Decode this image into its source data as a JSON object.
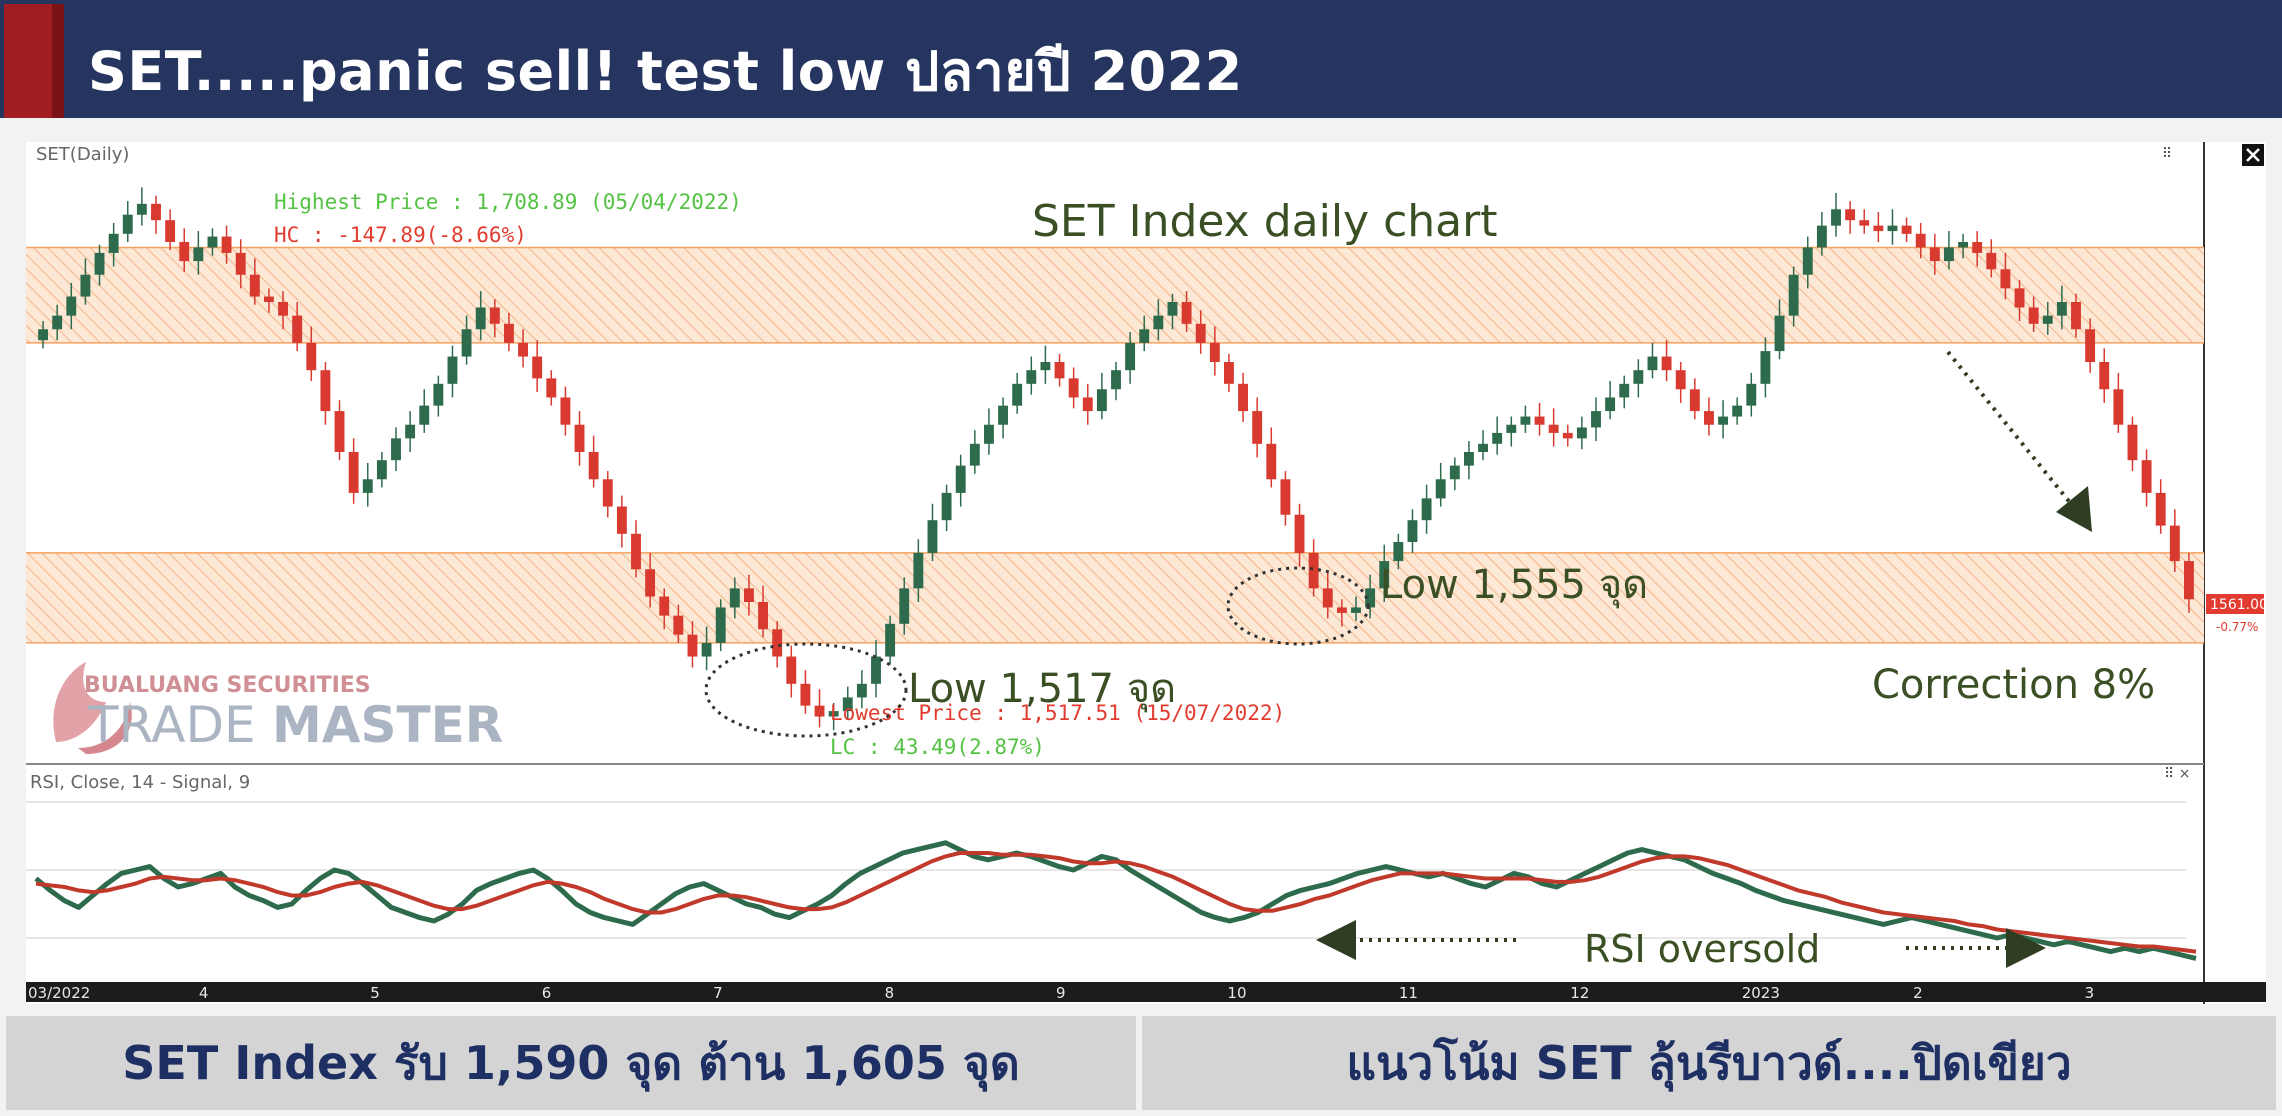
{
  "header": {
    "title": "SET.....panic sell! test low ปลายปี 2022"
  },
  "footer": {
    "left": "SET Index รับ 1,590 จุด ต้าน 1,605 จุด",
    "right": "แนวโน้ม SET ลุ้นรีบาวด์....ปิดเขียว"
  },
  "colors": {
    "header_bg": "#25355f",
    "up": "#2e6b4c",
    "down": "#d93a30",
    "zone": "#f4a261",
    "rsi": "#2e6b4c",
    "signal": "#c0392b"
  },
  "chart_data": [
    {
      "type": "candlestick",
      "panel_label": "SET(Daily)",
      "title": "SET Index daily chart",
      "highest_label": "Highest Price : 1,708.89 (05/04/2022)",
      "hc_label": "HC : -147.89(-8.66%)",
      "lowest_label": "Lowest Price : 1,517.51 (15/07/2022)",
      "lc_label": "LC : 43.49(2.87%)",
      "last_price_tag": "1561.00",
      "last_change_tag": "-0.77%",
      "annotations": {
        "low_a": "Low 1,517 จุด",
        "low_b": "Low 1,555 จุด",
        "correction": "Correction 8%"
      },
      "watermark": {
        "top": "BUALUANG SECURITIES",
        "bottom_a": "TRADE",
        "bottom_b": "MASTER"
      },
      "x_ticks": [
        "03/2022",
        "4",
        "5",
        "6",
        "7",
        "8",
        "9",
        "10",
        "11",
        "12",
        "2023",
        "2",
        "3"
      ],
      "ylim": [
        1505,
        1725
      ],
      "zones": [
        [
          1655,
          1690
        ],
        [
          1545,
          1578
        ]
      ],
      "close": [
        1660,
        1665,
        1672,
        1680,
        1688,
        1695,
        1702,
        1706,
        1700,
        1692,
        1685,
        1690,
        1694,
        1688,
        1680,
        1672,
        1670,
        1665,
        1655,
        1645,
        1630,
        1615,
        1600,
        1605,
        1612,
        1620,
        1625,
        1632,
        1640,
        1650,
        1660,
        1668,
        1662,
        1655,
        1650,
        1642,
        1635,
        1625,
        1615,
        1605,
        1595,
        1585,
        1572,
        1562,
        1555,
        1548,
        1540,
        1545,
        1558,
        1565,
        1560,
        1550,
        1540,
        1530,
        1522,
        1518,
        1520,
        1525,
        1530,
        1540,
        1552,
        1565,
        1578,
        1590,
        1600,
        1610,
        1618,
        1625,
        1632,
        1640,
        1645,
        1648,
        1642,
        1635,
        1630,
        1638,
        1645,
        1655,
        1660,
        1665,
        1670,
        1662,
        1655,
        1648,
        1640,
        1630,
        1618,
        1605,
        1592,
        1578,
        1565,
        1558,
        1556,
        1558,
        1565,
        1575,
        1582,
        1590,
        1598,
        1605,
        1610,
        1615,
        1618,
        1622,
        1625,
        1628,
        1625,
        1622,
        1620,
        1624,
        1630,
        1635,
        1640,
        1645,
        1650,
        1645,
        1638,
        1630,
        1625,
        1628,
        1632,
        1640,
        1652,
        1665,
        1680,
        1690,
        1698,
        1704,
        1700,
        1698,
        1696,
        1698,
        1695,
        1690,
        1685,
        1690,
        1692,
        1688,
        1682,
        1675,
        1668,
        1662,
        1665,
        1670,
        1660,
        1648,
        1638,
        1625,
        1612,
        1600,
        1588,
        1575,
        1561
      ]
    },
    {
      "type": "line",
      "panel_label": "RSI, Close, 14 - Signal, 9",
      "annotation": "RSI oversold",
      "ylim": [
        0,
        100
      ],
      "series": [
        {
          "name": "RSI",
          "values": [
            55,
            48,
            42,
            38,
            45,
            52,
            58,
            60,
            62,
            55,
            50,
            52,
            55,
            58,
            50,
            45,
            42,
            38,
            40,
            48,
            55,
            60,
            58,
            52,
            45,
            38,
            35,
            32,
            30,
            34,
            40,
            48,
            52,
            55,
            58,
            60,
            55,
            48,
            40,
            35,
            32,
            30,
            28,
            34,
            40,
            46,
            50,
            52,
            48,
            44,
            40,
            38,
            34,
            32,
            36,
            40,
            45,
            52,
            58,
            62,
            66,
            70,
            72,
            74,
            76,
            72,
            68,
            66,
            68,
            70,
            68,
            65,
            62,
            60,
            64,
            68,
            66,
            60,
            55,
            50,
            45,
            40,
            35,
            32,
            30,
            32,
            35,
            40,
            45,
            48,
            50,
            52,
            55,
            58,
            60,
            62,
            60,
            58,
            56,
            58,
            55,
            52,
            50,
            54,
            58,
            56,
            52,
            50,
            54,
            58,
            62,
            66,
            70,
            72,
            70,
            68,
            66,
            62,
            58,
            55,
            52,
            48,
            45,
            42,
            40,
            38,
            36,
            34,
            32,
            30,
            28,
            30,
            32,
            30,
            28,
            26,
            24,
            22,
            20,
            22,
            20,
            18,
            16,
            18,
            16,
            14,
            12,
            14,
            12,
            14,
            12,
            10,
            8
          ]
        },
        {
          "name": "Signal",
          "values": [
            52,
            51,
            50,
            48,
            47,
            48,
            50,
            52,
            55,
            56,
            55,
            54,
            54,
            55,
            54,
            52,
            50,
            47,
            45,
            45,
            47,
            50,
            52,
            53,
            51,
            48,
            45,
            42,
            39,
            37,
            37,
            39,
            42,
            45,
            48,
            51,
            53,
            52,
            50,
            47,
            43,
            40,
            37,
            35,
            35,
            37,
            40,
            43,
            45,
            45,
            44,
            42,
            40,
            38,
            37,
            37,
            38,
            41,
            45,
            49,
            53,
            57,
            61,
            65,
            68,
            70,
            70,
            70,
            69,
            69,
            69,
            68,
            67,
            65,
            64,
            64,
            65,
            64,
            62,
            59,
            56,
            52,
            48,
            44,
            40,
            37,
            36,
            36,
            38,
            40,
            43,
            45,
            48,
            51,
            54,
            56,
            58,
            58,
            58,
            58,
            57,
            56,
            55,
            55,
            55,
            55,
            54,
            53,
            53,
            54,
            56,
            59,
            62,
            65,
            67,
            68,
            68,
            67,
            65,
            63,
            60,
            57,
            54,
            51,
            48,
            46,
            44,
            41,
            39,
            37,
            35,
            34,
            33,
            32,
            31,
            30,
            28,
            27,
            25,
            24,
            23,
            22,
            21,
            20,
            19,
            18,
            17,
            16,
            15,
            15,
            14,
            13,
            12
          ]
        }
      ]
    }
  ]
}
